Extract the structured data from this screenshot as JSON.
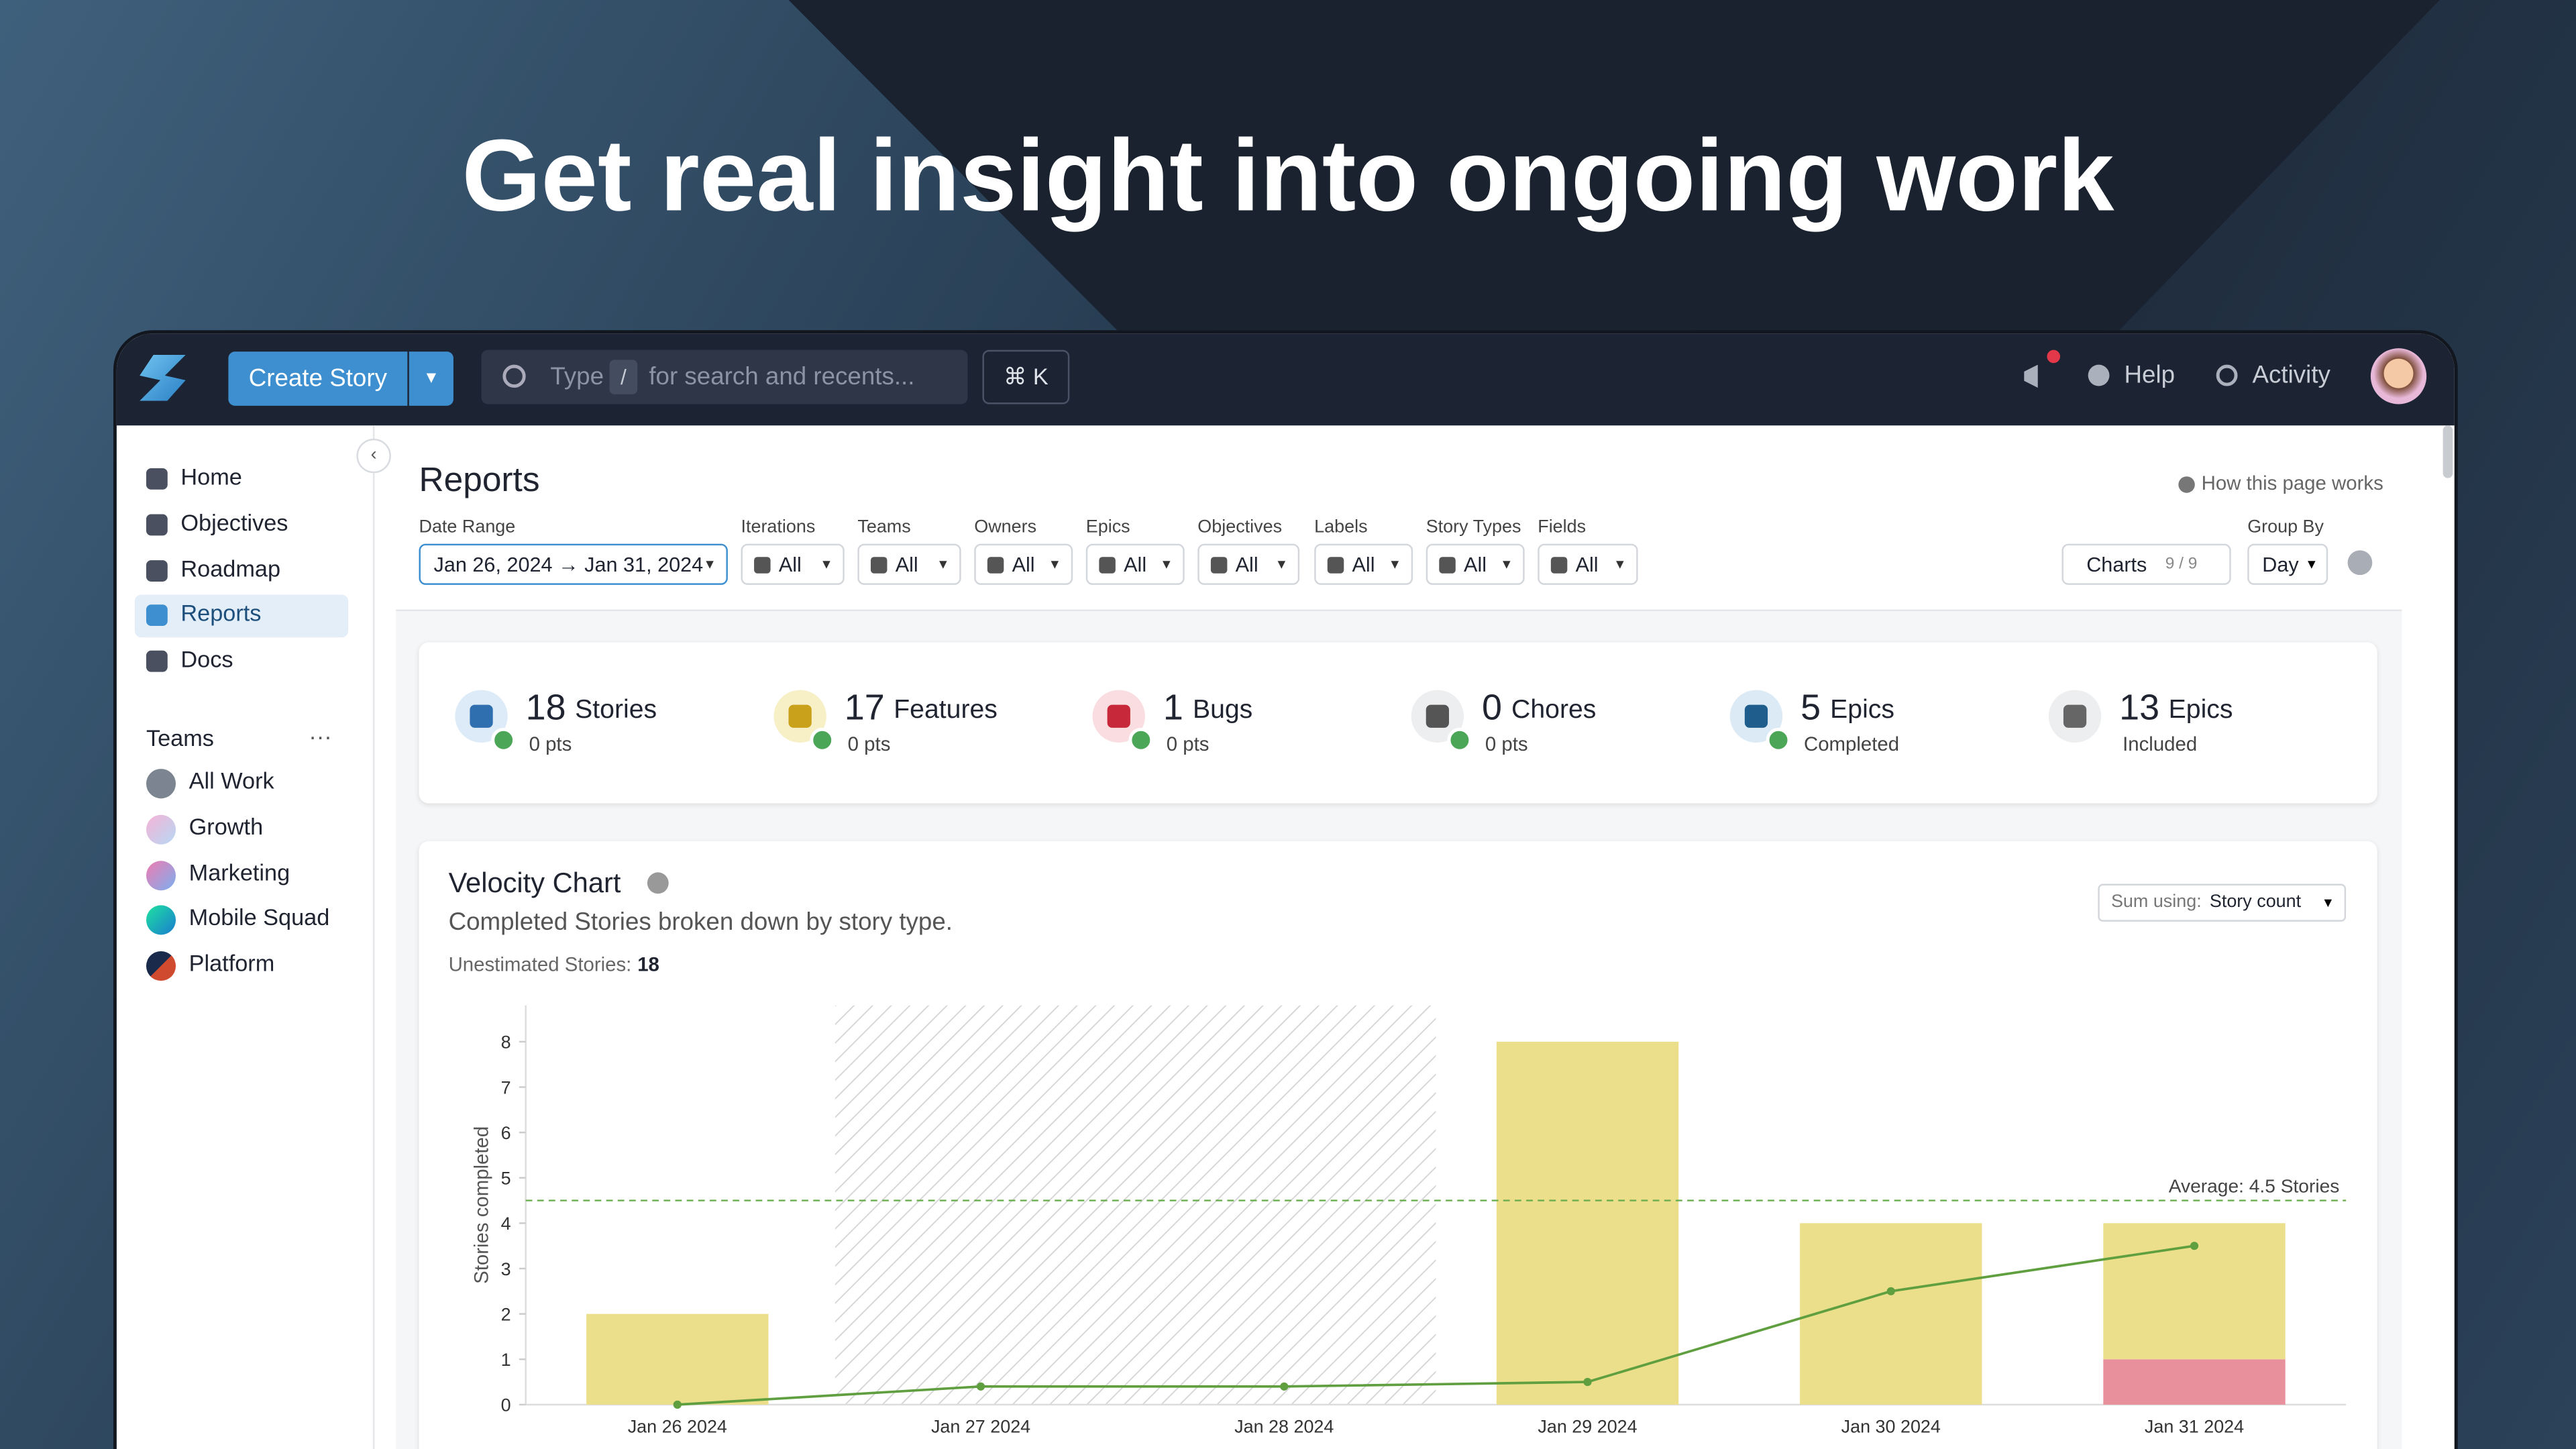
{
  "header": {
    "title": "Get real insight into ongoing work"
  },
  "topbar": {
    "create": "Create Story",
    "search": [
      "Type",
      "/",
      "for search and recents..."
    ],
    "shortcut": "⌘ K",
    "help": "Help",
    "activity": "Activity"
  },
  "nav": [
    "Home",
    "Objectives",
    "Roadmap",
    "Reports",
    "Docs"
  ],
  "teams": {
    "title": "Teams",
    "items": [
      "All Work",
      "Growth",
      "Marketing",
      "Mobile Squad",
      "Platform"
    ]
  },
  "page": {
    "title": "Reports",
    "help": "How this page works"
  },
  "filters": [
    {
      "label": "Date Range",
      "value": "Jan 26, 2024 → Jan 31, 2024"
    },
    {
      "label": "Iterations",
      "value": "All"
    },
    {
      "label": "Teams",
      "value": "All"
    },
    {
      "label": "Owners",
      "value": "All"
    },
    {
      "label": "Epics",
      "value": "All"
    },
    {
      "label": "Objectives",
      "value": "All"
    },
    {
      "label": "Labels",
      "value": "All"
    },
    {
      "label": "Story Types",
      "value": "All"
    },
    {
      "label": "Fields",
      "value": "All"
    }
  ],
  "charts_button": {
    "label": "Charts",
    "count": "9 / 9"
  },
  "group_by": {
    "label": "Group By",
    "value": "Day"
  },
  "stats": [
    {
      "value": 18,
      "label": "Stories",
      "sub": "0 pts"
    },
    {
      "value": 17,
      "label": "Features",
      "sub": "0 pts"
    },
    {
      "value": 1,
      "label": "Bugs",
      "sub": "0 pts"
    },
    {
      "value": 0,
      "label": "Chores",
      "sub": "0 pts"
    },
    {
      "value": 5,
      "label": "Epics",
      "sub": "Completed"
    },
    {
      "value": 13,
      "label": "Epics",
      "sub": "Included"
    }
  ],
  "chart_card": {
    "title": "Velocity Chart",
    "subtitle": "Completed Stories broken down by story type.",
    "unestimated_label": "Unestimated Stories:",
    "unestimated": 18,
    "sum_label": "Sum using:",
    "sum_value": "Story count"
  },
  "chart_data": {
    "type": "bar",
    "y_label": "Stories completed",
    "categories": [
      "Jan 26 2024",
      "Jan 27 2024",
      "Jan 28 2024",
      "Jan 29 2024",
      "Jan 30 2024",
      "Jan 31 2024"
    ],
    "series": [
      {
        "name": "Bugs",
        "type": "bar",
        "color": "#e8919c",
        "values": [
          0,
          0,
          0,
          0,
          0,
          1
        ]
      },
      {
        "name": "Features",
        "type": "bar",
        "color": "#ebdf8b",
        "values": [
          2,
          0,
          0,
          8,
          4,
          3
        ]
      },
      {
        "type": "line",
        "color": "#5f9f3f",
        "values": [
          0,
          0.4,
          0.4,
          0.5,
          2.5,
          3.5
        ]
      }
    ],
    "ylim": [
      0,
      8.8
    ],
    "yticks": [
      0,
      1,
      2,
      3,
      4,
      5,
      6,
      7,
      8
    ],
    "grid": false,
    "average": 4.5,
    "average_label": "Average: 4.5 Stories"
  }
}
